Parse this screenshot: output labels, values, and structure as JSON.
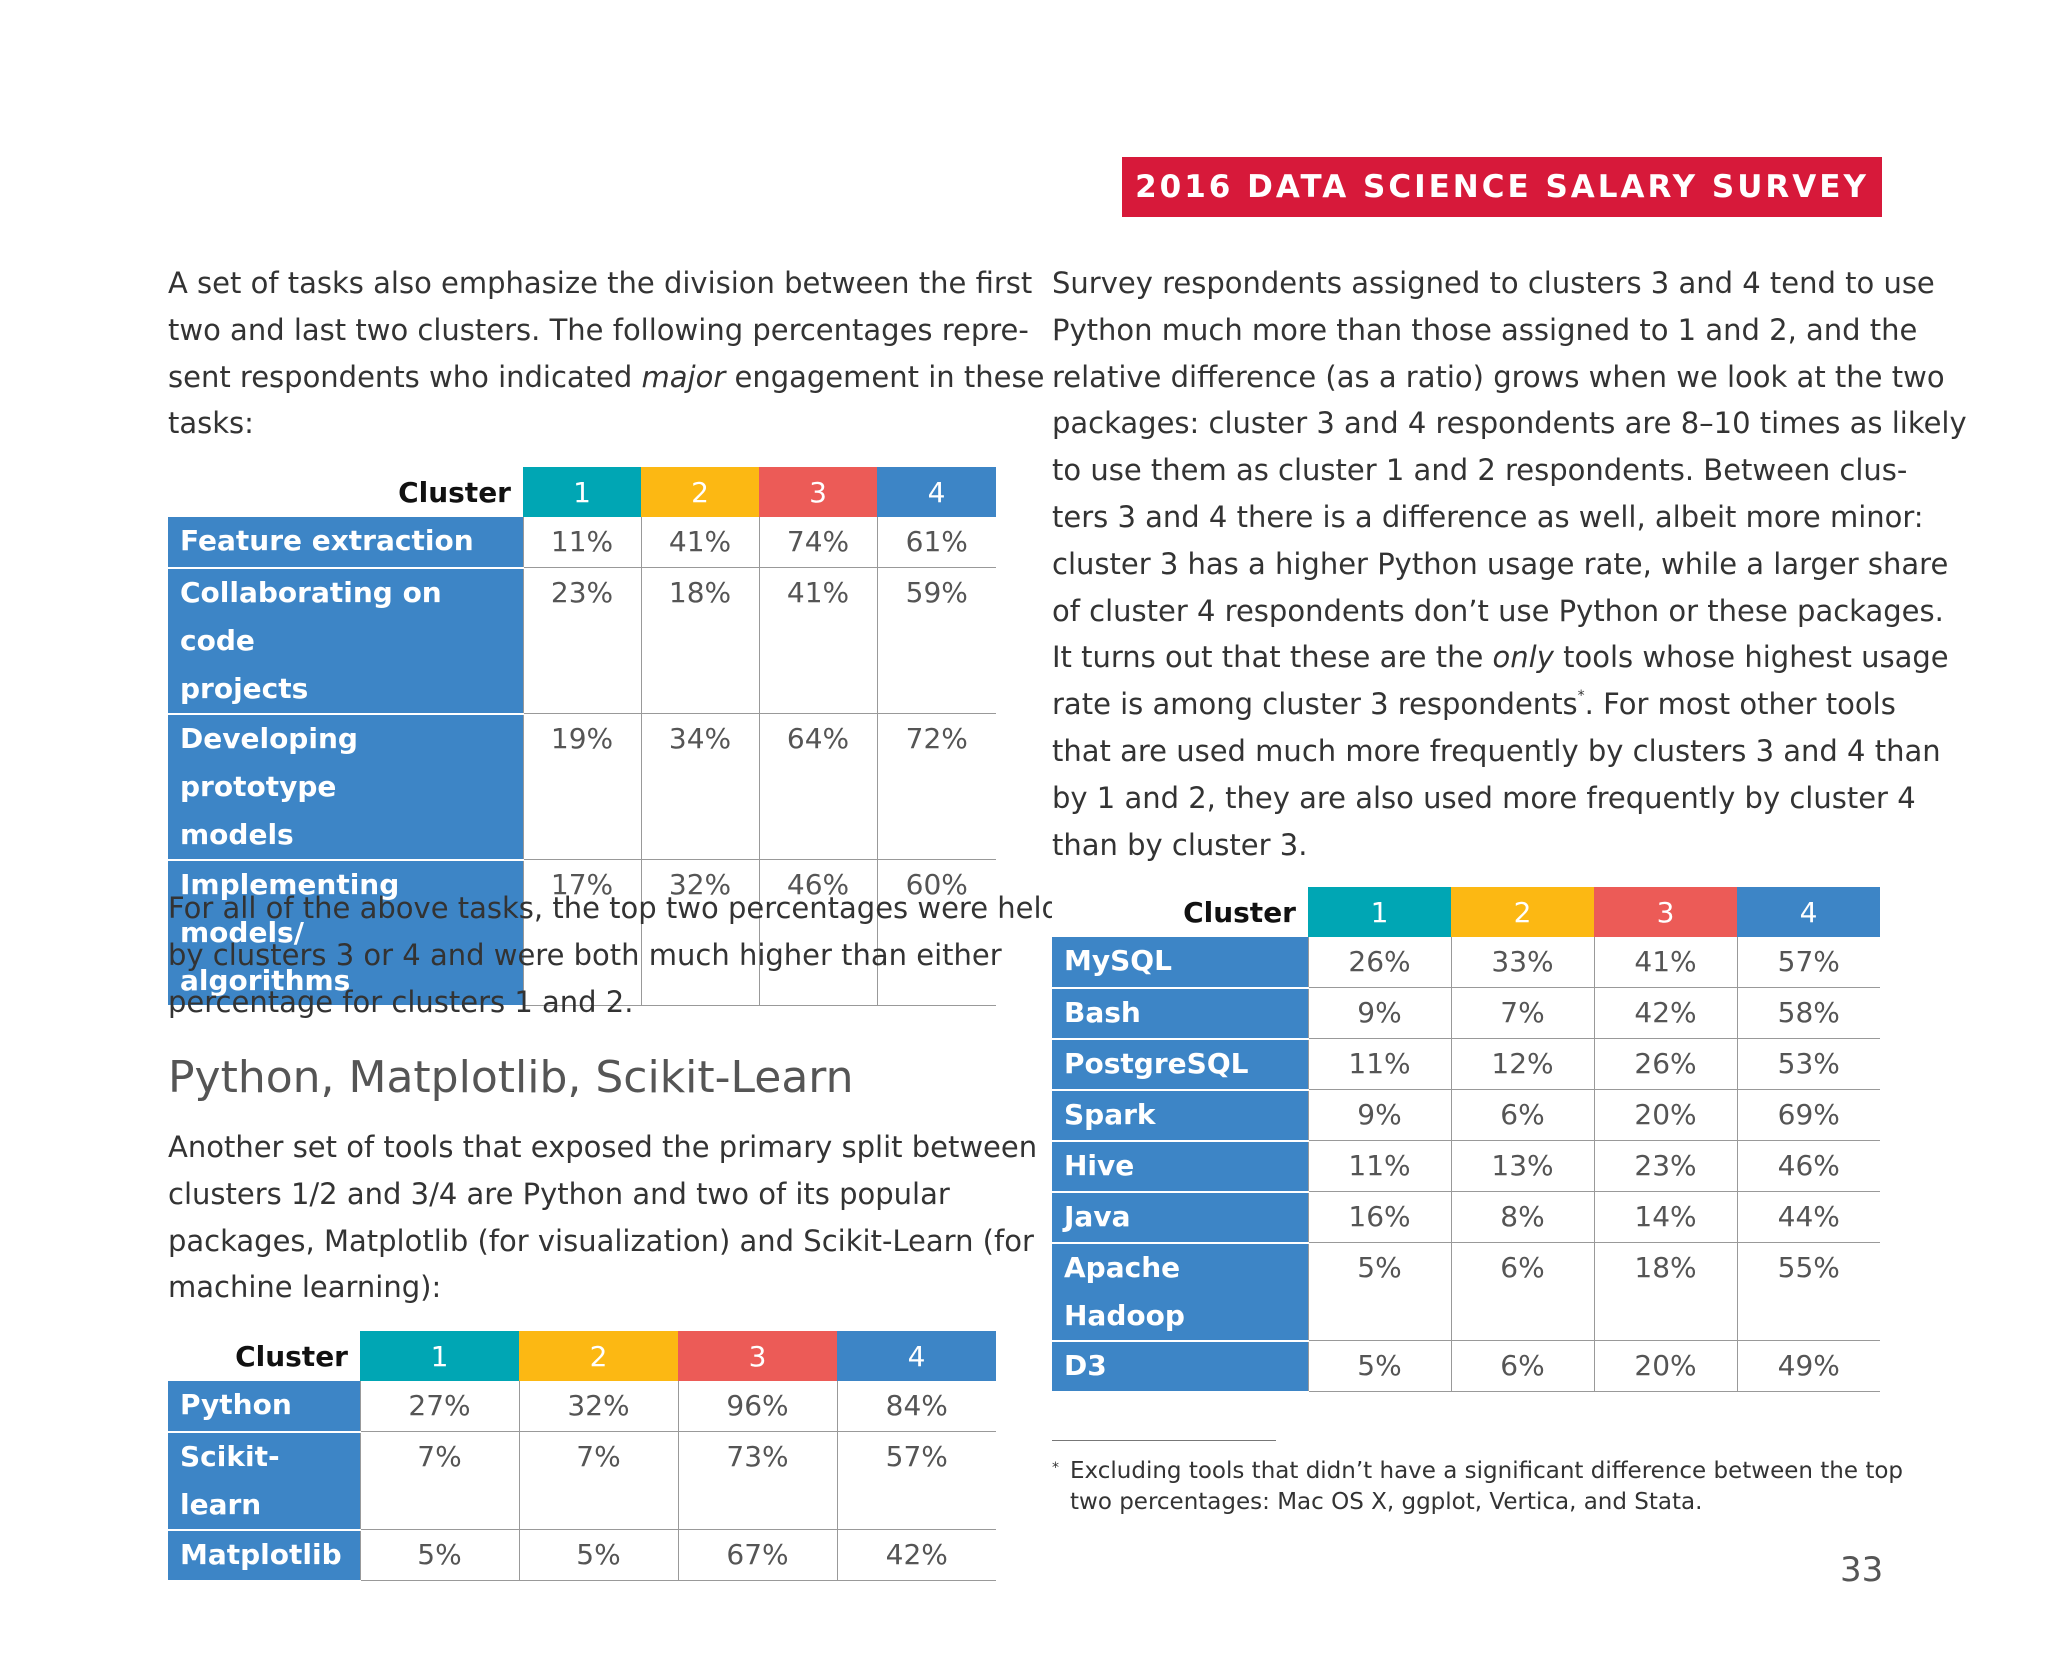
{
  "header": {
    "banner": "2016 DATA SCIENCE SALARY SURVEY"
  },
  "left_column": {
    "intro_lines": [
      "A set of tasks also emphasize the division between the first",
      "two and last two clusters. The following percentages repre-",
      "sent respondents who indicated",
      "major",
      "engagement in these",
      "tasks:"
    ],
    "tasks_table": {
      "corner": "Cluster",
      "columns": [
        "1",
        "2",
        "3",
        "4"
      ],
      "rows": [
        {
          "label_lines": [
            "Feature extraction"
          ],
          "values": [
            "11%",
            "41%",
            "74%",
            "61%"
          ]
        },
        {
          "label_lines": [
            "Collaborating on code",
            "projects"
          ],
          "values": [
            "23%",
            "18%",
            "41%",
            "59%"
          ]
        },
        {
          "label_lines": [
            "Developing prototype",
            "models"
          ],
          "values": [
            "19%",
            "34%",
            "64%",
            "72%"
          ]
        },
        {
          "label_lines": [
            "Implementing models/",
            "algorithms"
          ],
          "values": [
            "17%",
            "32%",
            "46%",
            "60%"
          ]
        }
      ]
    },
    "after_tasks_lines": [
      "For all of the above tasks, the top two percentages were held",
      "by clusters 3 or 4 and were both much higher than either",
      "percentage for clusters 1 and 2."
    ],
    "section_heading": "Python, Matplotlib, Scikit-Learn",
    "section_lines": [
      "Another set of tools that exposed the primary split between",
      "clusters 1/2 and 3/4 are Python and two of its popular",
      "packages, Matplotlib (for visualization) and Scikit-Learn (for",
      "machine learning):"
    ],
    "python_table": {
      "corner": "Cluster",
      "columns": [
        "1",
        "2",
        "3",
        "4"
      ],
      "rows": [
        {
          "label": "Python",
          "values": [
            "27%",
            "32%",
            "96%",
            "84%"
          ]
        },
        {
          "label": "Scikit-learn",
          "values": [
            "7%",
            "7%",
            "73%",
            "57%"
          ]
        },
        {
          "label": "Matplotlib",
          "values": [
            "5%",
            "5%",
            "67%",
            "42%"
          ]
        }
      ]
    }
  },
  "right_column": {
    "lines": [
      "Survey respondents assigned to clusters 3 and 4 tend to use",
      "Python much more than those assigned to 1 and 2, and the",
      "relative difference (as a ratio) grows when we look at the two",
      "packages: cluster 3 and 4 respondents are 8–10 times as likely",
      "to use them as cluster 1 and 2 respondents. Between clus-",
      "ters 3 and 4 there is a difference as well, albeit more minor:",
      "cluster 3 has a higher Python usage rate, while a larger share",
      "of cluster 4 respondents don’t use Python or these packages.",
      "It turns out that these are the",
      "only",
      "tools whose highest usage",
      "rate is among cluster 3 respondents",
      "*",
      ". For most other tools",
      "that are used much more frequently by clusters 3 and 4 than",
      "by 1 and 2, they are also used more frequently by cluster 4",
      "than by cluster 3."
    ],
    "tools_table": {
      "corner": "Cluster",
      "columns": [
        "1",
        "2",
        "3",
        "4"
      ],
      "rows": [
        {
          "label": "MySQL",
          "values": [
            "26%",
            "33%",
            "41%",
            "57%"
          ]
        },
        {
          "label": "Bash",
          "values": [
            "9%",
            "7%",
            "42%",
            "58%"
          ]
        },
        {
          "label": "PostgreSQL",
          "values": [
            "11%",
            "12%",
            "26%",
            "53%"
          ]
        },
        {
          "label": "Spark",
          "values": [
            "9%",
            "6%",
            "20%",
            "69%"
          ]
        },
        {
          "label": "Hive",
          "values": [
            "11%",
            "13%",
            "23%",
            "46%"
          ]
        },
        {
          "label": "Java",
          "values": [
            "16%",
            "8%",
            "14%",
            "44%"
          ]
        },
        {
          "label": "Apache Hadoop",
          "values": [
            "5%",
            "6%",
            "18%",
            "55%"
          ]
        },
        {
          "label": "D3",
          "values": [
            "5%",
            "6%",
            "20%",
            "49%"
          ]
        }
      ]
    },
    "footnote": {
      "marker": "*",
      "lines": [
        "Excluding tools that didn’t have a significant difference between the top",
        "two percentages: Mac OS X, ggplot, Vertica, and Stata."
      ]
    }
  },
  "page_number": "33"
}
